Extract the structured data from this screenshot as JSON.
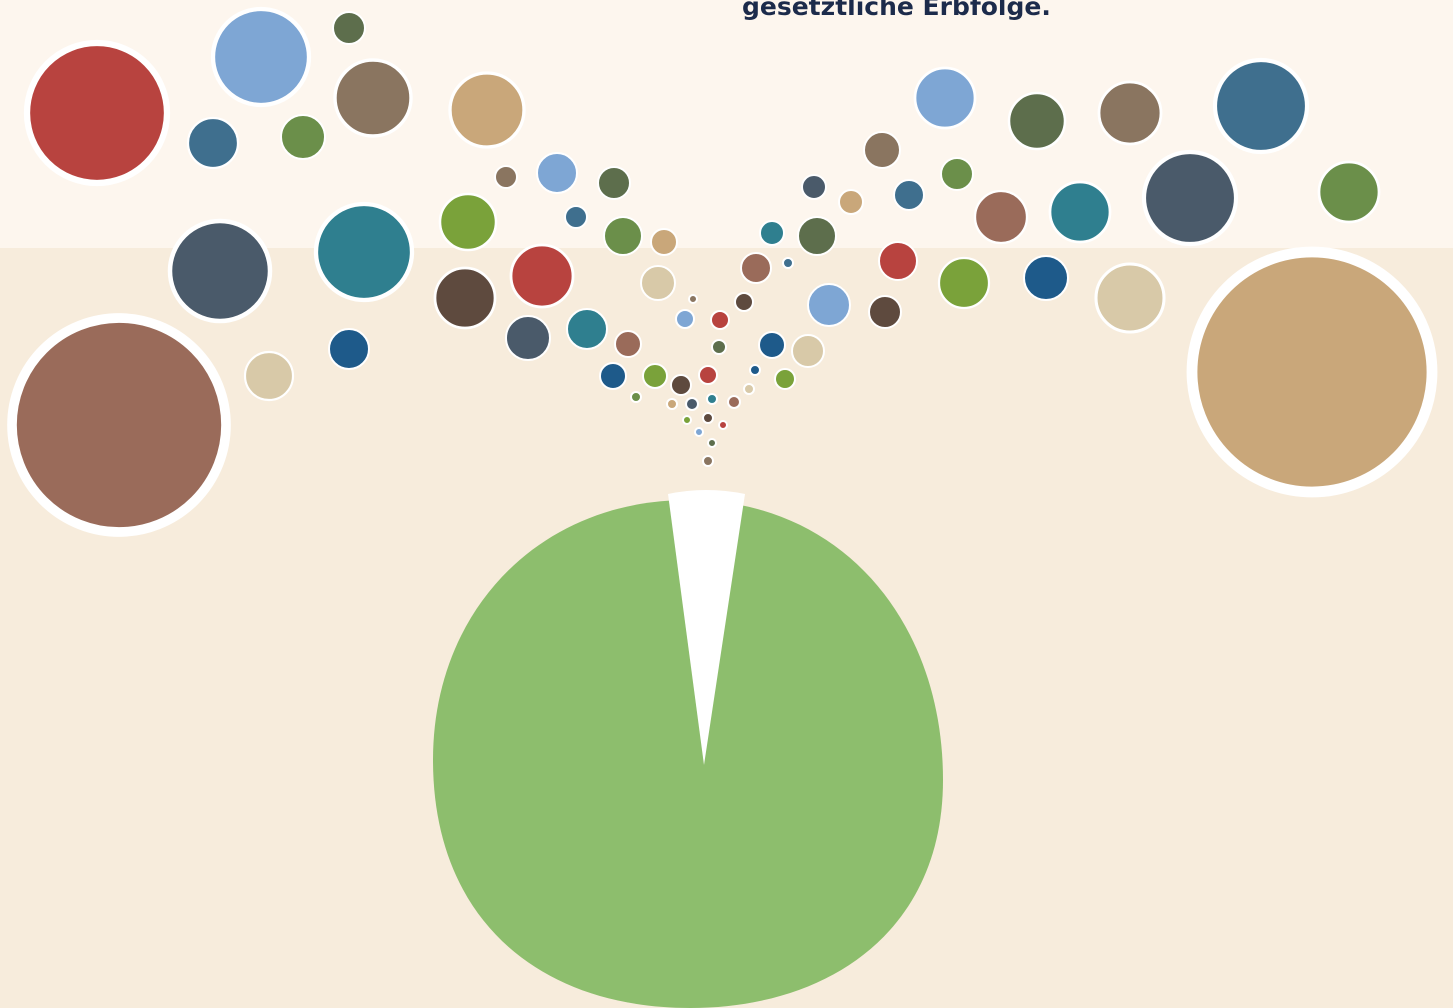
{
  "header": {
    "text": "gesetztliche Erbfolge."
  }
}
